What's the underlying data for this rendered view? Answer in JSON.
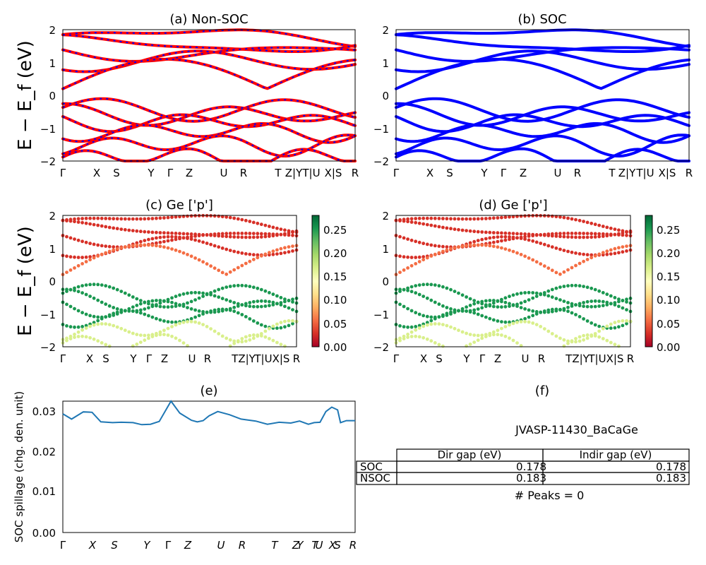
{
  "figure": {
    "colorbar_ticks": [
      "0.00",
      "0.05",
      "0.10",
      "0.15",
      "0.20",
      "0.25"
    ],
    "colors": {
      "nonsoc_main": "#ff0000",
      "nonsoc_dash": "#0000ff",
      "soc": "#0000ff",
      "spillage": "#1f77b4"
    },
    "table": {
      "title": "JVASP-11430_BaCaGe",
      "col_labels": [
        "Dir gap (eV)",
        "Indir gap (eV)"
      ],
      "rows": [
        {
          "label": "SOC",
          "dir": "0.178",
          "indir": "0.178"
        },
        {
          "label": "NSOC",
          "dir": "0.183",
          "indir": "0.183"
        }
      ],
      "peaks": "# Peaks = 0"
    }
  },
  "chart_data": [
    {
      "type": "line",
      "title": "(a) Non-SOC",
      "ylabel": "E − E_f (eV)",
      "ylim": [
        -2,
        2
      ],
      "yticks": [
        "2",
        "1",
        "0",
        "−1",
        "−2"
      ],
      "kpath_labels": [
        "Γ",
        "X",
        "S",
        "Y",
        "Γ",
        "Z",
        "U",
        "R",
        "T",
        "Z|Y",
        "T|U",
        "X|S",
        "R"
      ],
      "series": [
        {
          "values": []
        }
      ]
    },
    {
      "type": "line",
      "title": "(b) SOC",
      "ylabel": "",
      "ylim": [
        -2,
        2
      ],
      "yticks": [
        "2",
        "1",
        "0",
        "−1",
        "−2"
      ],
      "kpath_labels": [
        "Γ",
        "X",
        "S",
        "Y",
        "Γ",
        "Z",
        "U",
        "R",
        "T",
        "Z|Y",
        "T|U",
        "X|S",
        "R"
      ],
      "series": [
        {
          "values": []
        }
      ]
    },
    {
      "type": "scatter",
      "title": "(c)  Ge ['p']",
      "ylabel": "E − E_f (eV)",
      "ylim": [
        -2,
        2
      ],
      "yticks": [
        "2",
        "1",
        "0",
        "−1",
        "−2"
      ],
      "kpath_labels": [
        "Γ",
        "X",
        "S",
        "Y",
        "Γ",
        "Z",
        "U",
        "R",
        "TZ|Y",
        "T|U",
        "X|S",
        "R"
      ],
      "colorbar": {
        "min": 0,
        "max": 0.28,
        "colormap": "RdYlGn"
      }
    },
    {
      "type": "scatter",
      "title": "(d) Ge ['p']",
      "ylabel": "",
      "ylim": [
        -2,
        2
      ],
      "yticks": [
        "2",
        "1",
        "0",
        "−1",
        "−2"
      ],
      "kpath_labels": [
        "Γ",
        "X",
        "S",
        "Y",
        "Γ",
        "Z",
        "U",
        "R",
        "TZ|Y",
        "T|U",
        "X|S",
        "R"
      ],
      "colorbar": {
        "min": 0,
        "max": 0.28,
        "colormap": "RdYlGn"
      }
    },
    {
      "type": "line",
      "title": "(e)",
      "ylabel": "SOC spillage (chg. den. unit)",
      "ylim": [
        0,
        0.033
      ],
      "yticks": [
        "0.03",
        "0.02",
        "0.01",
        "0.00"
      ],
      "kpath_labels": [
        "Γ",
        "X",
        "S",
        "Y",
        "Γ",
        "Z",
        "U",
        "R",
        "T",
        "Z",
        "Y",
        "T",
        "U",
        "X",
        "S",
        "R"
      ],
      "x": [
        0,
        0.03,
        0.07,
        0.1,
        0.13,
        0.17,
        0.2,
        0.24,
        0.27,
        0.3,
        0.33,
        0.37,
        0.4,
        0.44,
        0.46,
        0.48,
        0.5,
        0.53,
        0.57,
        0.61,
        0.66,
        0.7,
        0.74,
        0.78,
        0.81,
        0.84,
        0.86,
        0.88,
        0.9,
        0.92,
        0.94,
        0.95,
        0.97,
        1.0
      ],
      "values": [
        0.0298,
        0.0285,
        0.0303,
        0.0302,
        0.0278,
        0.0276,
        0.0277,
        0.0276,
        0.0271,
        0.0272,
        0.0279,
        0.033,
        0.03,
        0.0282,
        0.0278,
        0.0281,
        0.0293,
        0.0304,
        0.0296,
        0.0285,
        0.028,
        0.0272,
        0.0277,
        0.0275,
        0.028,
        0.0272,
        0.0276,
        0.0277,
        0.0304,
        0.0315,
        0.0308,
        0.0276,
        0.0281,
        0.0281
      ]
    },
    {
      "type": "table",
      "title": "(f)"
    }
  ]
}
